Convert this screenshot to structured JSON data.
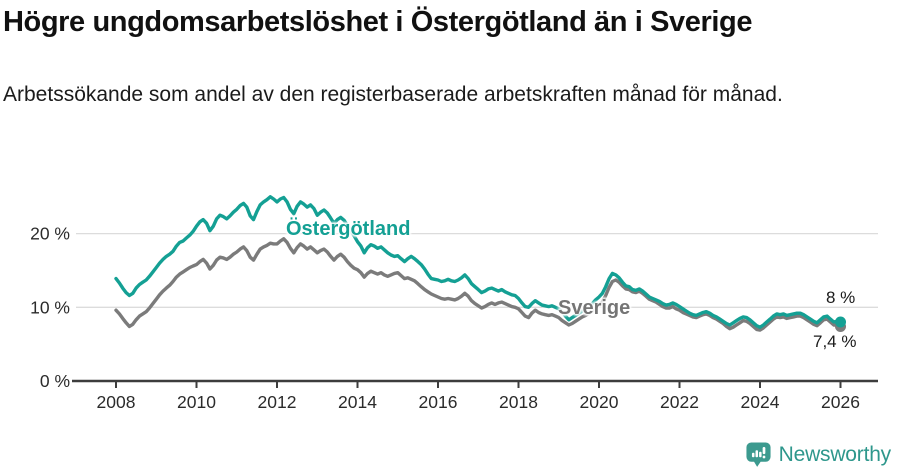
{
  "header": {
    "title": "Högre ungdomsarbetslöshet i Östergötland än i Sverige",
    "subtitle": "Arbetssökande som andel av den registerbaserade arbetskraften månad för månad."
  },
  "chart_data": {
    "type": "line",
    "unit": "percent",
    "x_unit": "month",
    "x_start": "2008-01",
    "x_end": "2026-01",
    "grid": "horizontal",
    "ylim": [
      0,
      27
    ],
    "yticks": [
      {
        "v": 0,
        "label": "0 %"
      },
      {
        "v": 10,
        "label": "10 %"
      },
      {
        "v": 20,
        "label": "20 %"
      }
    ],
    "xticks": [
      {
        "v": 2008,
        "label": "2008"
      },
      {
        "v": 2010,
        "label": "2010"
      },
      {
        "v": 2012,
        "label": "2012"
      },
      {
        "v": 2014,
        "label": "2014"
      },
      {
        "v": 2016,
        "label": "2016"
      },
      {
        "v": 2018,
        "label": "2018"
      },
      {
        "v": 2020,
        "label": "2020"
      },
      {
        "v": 2022,
        "label": "2022"
      },
      {
        "v": 2024,
        "label": "2024"
      },
      {
        "v": 2026,
        "label": "2026"
      }
    ],
    "series": [
      {
        "name": "Östergötland",
        "color": "#14A094",
        "end_label": "8 %",
        "end_value": 8.0,
        "values": [
          13.9,
          13.3,
          12.6,
          12.0,
          11.6,
          11.9,
          12.6,
          13.1,
          13.4,
          13.7,
          14.2,
          14.8,
          15.4,
          16.0,
          16.5,
          16.9,
          17.2,
          17.6,
          18.3,
          18.8,
          19.0,
          19.4,
          19.8,
          20.3,
          21.0,
          21.6,
          21.9,
          21.4,
          20.4,
          21.0,
          22.0,
          22.5,
          22.3,
          22.0,
          22.4,
          22.9,
          23.3,
          23.8,
          24.1,
          23.6,
          22.4,
          21.9,
          23.0,
          23.9,
          24.3,
          24.6,
          25.0,
          24.7,
          24.3,
          24.7,
          24.9,
          24.3,
          23.3,
          22.7,
          23.7,
          24.3,
          24.0,
          23.6,
          23.9,
          23.4,
          22.5,
          22.9,
          23.2,
          22.8,
          22.1,
          21.4,
          21.9,
          22.2,
          21.8,
          21.1,
          20.4,
          19.7,
          18.9,
          18.3,
          17.4,
          18.1,
          18.5,
          18.3,
          18.0,
          18.2,
          17.8,
          17.4,
          17.1,
          16.9,
          17.0,
          16.6,
          16.2,
          16.6,
          16.9,
          16.6,
          16.2,
          15.8,
          15.2,
          14.5,
          13.9,
          13.8,
          13.7,
          13.5,
          13.6,
          13.8,
          13.6,
          13.5,
          13.7,
          14.0,
          14.4,
          13.9,
          13.2,
          12.8,
          12.4,
          12.0,
          12.2,
          12.5,
          12.6,
          12.4,
          12.2,
          12.4,
          12.1,
          11.9,
          11.7,
          11.6,
          11.2,
          10.6,
          10.1,
          10.0,
          10.5,
          10.9,
          10.6,
          10.3,
          10.2,
          10.1,
          10.2,
          10.0,
          9.8,
          9.4,
          8.8,
          8.3,
          8.6,
          8.9,
          9.2,
          9.5,
          9.7,
          10.1,
          10.5,
          11.0,
          11.4,
          11.9,
          12.8,
          13.9,
          14.6,
          14.4,
          14.0,
          13.4,
          12.9,
          12.8,
          12.4,
          12.3,
          12.5,
          12.2,
          11.8,
          11.4,
          11.2,
          11.0,
          10.8,
          10.5,
          10.3,
          10.4,
          10.6,
          10.4,
          10.1,
          9.8,
          9.5,
          9.2,
          9.0,
          8.9,
          9.1,
          9.3,
          9.4,
          9.2,
          8.9,
          8.7,
          8.4,
          8.1,
          7.8,
          7.6,
          7.9,
          8.2,
          8.5,
          8.7,
          8.6,
          8.3,
          7.9,
          7.5,
          7.3,
          7.6,
          8.0,
          8.4,
          8.8,
          9.1,
          9.0,
          9.1,
          8.9,
          9.0,
          9.1,
          9.2,
          9.2,
          9.0,
          8.7,
          8.4,
          8.1,
          7.9,
          8.3,
          8.7,
          8.8,
          8.4,
          8.0,
          8.1,
          8.0
        ]
      },
      {
        "name": "Sverige",
        "color": "#7B7B7B",
        "end_label": "7,4 %",
        "end_value": 7.4,
        "values": [
          9.6,
          9.1,
          8.5,
          7.9,
          7.4,
          7.7,
          8.3,
          8.8,
          9.1,
          9.4,
          9.9,
          10.5,
          11.1,
          11.7,
          12.2,
          12.6,
          13.0,
          13.5,
          14.1,
          14.5,
          14.8,
          15.1,
          15.4,
          15.6,
          15.8,
          16.2,
          16.5,
          16.0,
          15.2,
          15.7,
          16.4,
          16.8,
          16.7,
          16.5,
          16.8,
          17.2,
          17.5,
          17.9,
          18.2,
          17.7,
          16.8,
          16.4,
          17.2,
          17.9,
          18.2,
          18.4,
          18.7,
          18.6,
          18.6,
          19.0,
          19.3,
          18.8,
          18.0,
          17.4,
          18.1,
          18.6,
          18.3,
          17.9,
          18.2,
          17.8,
          17.4,
          17.7,
          17.9,
          17.5,
          16.9,
          16.4,
          16.9,
          17.2,
          16.8,
          16.2,
          15.7,
          15.3,
          15.1,
          14.7,
          14.1,
          14.6,
          14.9,
          14.7,
          14.5,
          14.7,
          14.4,
          14.2,
          14.4,
          14.6,
          14.7,
          14.3,
          13.9,
          14.0,
          13.8,
          13.6,
          13.2,
          12.8,
          12.4,
          12.1,
          11.8,
          11.6,
          11.4,
          11.2,
          11.1,
          11.2,
          11.1,
          11.0,
          11.2,
          11.5,
          11.9,
          11.5,
          10.9,
          10.5,
          10.2,
          9.9,
          10.1,
          10.4,
          10.6,
          10.4,
          10.6,
          10.7,
          10.5,
          10.3,
          10.1,
          10.0,
          9.8,
          9.3,
          8.8,
          8.6,
          9.2,
          9.6,
          9.3,
          9.1,
          9.0,
          8.9,
          9.0,
          8.8,
          8.6,
          8.2,
          7.9,
          7.6,
          7.8,
          8.1,
          8.4,
          8.7,
          8.9,
          9.2,
          9.5,
          9.9,
          10.2,
          10.7,
          11.6,
          12.7,
          13.5,
          13.7,
          13.4,
          12.9,
          12.5,
          12.4,
          12.1,
          12.0,
          12.2,
          11.9,
          11.5,
          11.1,
          10.9,
          10.7,
          10.4,
          10.1,
          9.9,
          9.9,
          10.1,
          9.8,
          9.6,
          9.3,
          9.1,
          8.9,
          8.7,
          8.6,
          8.8,
          9.0,
          9.1,
          8.9,
          8.6,
          8.4,
          8.1,
          7.8,
          7.4,
          7.1,
          7.3,
          7.6,
          7.9,
          8.2,
          8.1,
          7.8,
          7.4,
          7.0,
          6.9,
          7.2,
          7.6,
          8.0,
          8.4,
          8.7,
          8.6,
          8.7,
          8.5,
          8.6,
          8.7,
          8.8,
          8.8,
          8.6,
          8.3,
          8.0,
          7.7,
          7.5,
          7.9,
          8.3,
          8.4,
          8.0,
          7.6,
          7.6,
          7.4
        ]
      }
    ],
    "colors": {
      "grid": "#DCDCDC",
      "axis": "#3D3D3D",
      "annotation_text": "#1A1A1A"
    }
  },
  "footer": {
    "brand": "Newsworthy",
    "brand_color": "#2E978C",
    "icon_color": "#3C9A8F"
  }
}
